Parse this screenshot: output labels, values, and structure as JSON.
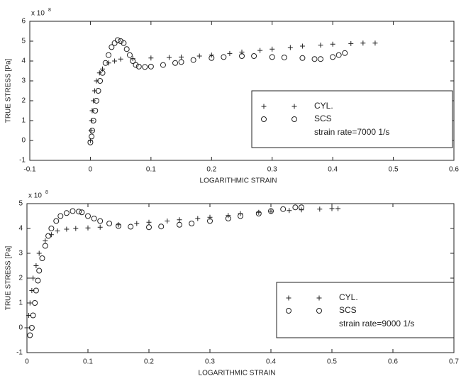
{
  "chart_data": [
    {
      "type": "scatter",
      "ylabel": "TRUE STRESS [Pa]",
      "xlabel": "LOGARITHMIC STRAIN",
      "y_multiplier": "x 10",
      "y_exponent": "8",
      "xlim": [
        -0.1,
        0.6
      ],
      "xticks": [
        -0.1,
        0,
        0.1,
        0.2,
        0.3,
        0.4,
        0.5,
        0.6
      ],
      "ylim": [
        -1,
        6
      ],
      "yticks": [
        -1,
        0,
        1,
        2,
        3,
        4,
        5,
        6
      ],
      "annotation": "strain rate=7000 1/s",
      "series": [
        {
          "name": "CYL.",
          "marker": "plus",
          "color": "#222222",
          "x": [
            0,
            0.001,
            0.002,
            0.003,
            0.005,
            0.007,
            0.01,
            0.015,
            0.02,
            0.03,
            0.04,
            0.05,
            0.07,
            0.1,
            0.13,
            0.15,
            0.18,
            0.2,
            0.23,
            0.25,
            0.28,
            0.3,
            0.33,
            0.35,
            0.38,
            0.4,
            0.43,
            0.45,
            0.47
          ],
          "values": [
            0,
            0.5,
            1,
            1.5,
            2,
            2.5,
            3,
            3.4,
            3.6,
            3.9,
            4.0,
            4.1,
            4.12,
            4.15,
            4.18,
            4.2,
            4.25,
            4.3,
            4.38,
            4.45,
            4.53,
            4.6,
            4.68,
            4.75,
            4.8,
            4.85,
            4.88,
            4.9,
            4.9
          ]
        },
        {
          "name": "SCS",
          "marker": "circle",
          "color": "#222222",
          "x": [
            0,
            0.002,
            0.003,
            0.005,
            0.008,
            0.01,
            0.013,
            0.016,
            0.02,
            0.025,
            0.03,
            0.035,
            0.04,
            0.045,
            0.05,
            0.055,
            0.06,
            0.065,
            0.07,
            0.075,
            0.08,
            0.09,
            0.1,
            0.12,
            0.14,
            0.15,
            0.17,
            0.2,
            0.22,
            0.25,
            0.27,
            0.3,
            0.32,
            0.35,
            0.37,
            0.38,
            0.4,
            0.41,
            0.42
          ],
          "values": [
            -0.1,
            0.2,
            0.5,
            1,
            1.5,
            2,
            2.5,
            3,
            3.4,
            3.9,
            4.3,
            4.7,
            4.9,
            5.05,
            5.0,
            4.9,
            4.6,
            4.3,
            4.0,
            3.8,
            3.72,
            3.7,
            3.72,
            3.8,
            3.9,
            3.95,
            4.05,
            4.15,
            4.2,
            4.25,
            4.25,
            4.2,
            4.18,
            4.15,
            4.1,
            4.1,
            4.2,
            4.3,
            4.4
          ]
        }
      ]
    },
    {
      "type": "scatter",
      "ylabel": "TRUE STRESS [Pa]",
      "xlabel": "LOGARITHMIC STRAIN",
      "y_multiplier": "x 10",
      "y_exponent": "8",
      "xlim": [
        0,
        0.7
      ],
      "xticks": [
        0,
        0.1,
        0.2,
        0.3,
        0.4,
        0.5,
        0.6,
        0.7
      ],
      "ylim": [
        -1,
        5
      ],
      "yticks": [
        -1,
        0,
        1,
        2,
        3,
        4,
        5
      ],
      "annotation": "strain rate=9000 1/s",
      "series": [
        {
          "name": "CYL.",
          "marker": "plus",
          "color": "#222222",
          "x": [
            0,
            0.003,
            0.005,
            0.008,
            0.01,
            0.015,
            0.02,
            0.03,
            0.04,
            0.05,
            0.065,
            0.08,
            0.1,
            0.12,
            0.15,
            0.18,
            0.2,
            0.23,
            0.25,
            0.28,
            0.3,
            0.33,
            0.35,
            0.38,
            0.4,
            0.43,
            0.45,
            0.48,
            0.5,
            0.51
          ],
          "values": [
            0,
            0.5,
            1,
            1.5,
            2,
            2.5,
            3,
            3.5,
            3.75,
            3.9,
            3.97,
            4.0,
            4.02,
            4.05,
            4.15,
            4.2,
            4.25,
            4.3,
            4.35,
            4.4,
            4.45,
            4.52,
            4.6,
            4.65,
            4.7,
            4.72,
            4.75,
            4.78,
            4.8,
            4.8
          ]
        },
        {
          "name": "SCS",
          "marker": "circle",
          "color": "#222222",
          "x": [
            0.005,
            0.008,
            0.01,
            0.013,
            0.015,
            0.018,
            0.02,
            0.025,
            0.03,
            0.035,
            0.04,
            0.048,
            0.055,
            0.065,
            0.075,
            0.085,
            0.09,
            0.1,
            0.11,
            0.12,
            0.135,
            0.15,
            0.17,
            0.2,
            0.22,
            0.25,
            0.27,
            0.3,
            0.33,
            0.35,
            0.38,
            0.4,
            0.42,
            0.44,
            0.45
          ],
          "values": [
            -0.3,
            0,
            0.5,
            1,
            1.5,
            1.9,
            2.3,
            2.8,
            3.3,
            3.7,
            4.0,
            4.3,
            4.5,
            4.62,
            4.7,
            4.68,
            4.65,
            4.5,
            4.4,
            4.3,
            4.2,
            4.1,
            4.07,
            4.05,
            4.08,
            4.15,
            4.2,
            4.3,
            4.4,
            4.5,
            4.6,
            4.7,
            4.78,
            4.85,
            4.85
          ]
        }
      ]
    }
  ]
}
